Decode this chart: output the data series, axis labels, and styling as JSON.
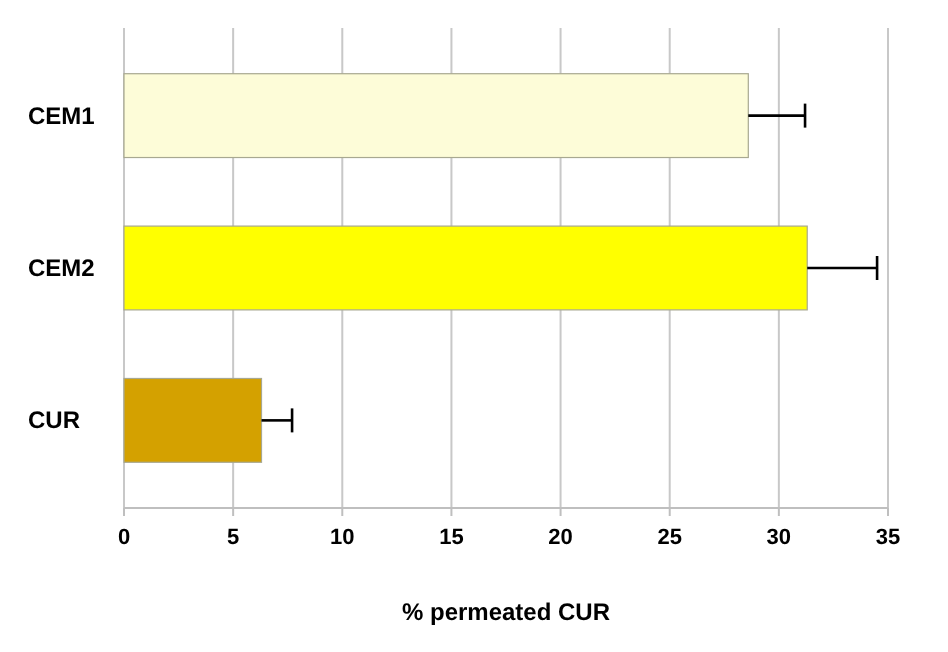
{
  "chart_data": {
    "type": "bar",
    "orientation": "horizontal",
    "xlabel": "% permeated  CUR",
    "categories": [
      "CEM1",
      "CEM2",
      "CUR"
    ],
    "values": [
      28.6,
      31.3,
      6.3
    ],
    "errors": [
      2.6,
      3.2,
      1.4
    ],
    "colors": [
      "#fdfcd8",
      "#ffff00",
      "#d4a100"
    ],
    "xlim": [
      0,
      35
    ],
    "xticks": [
      0,
      5,
      10,
      15,
      20,
      25,
      30,
      35
    ],
    "grid": "x"
  }
}
